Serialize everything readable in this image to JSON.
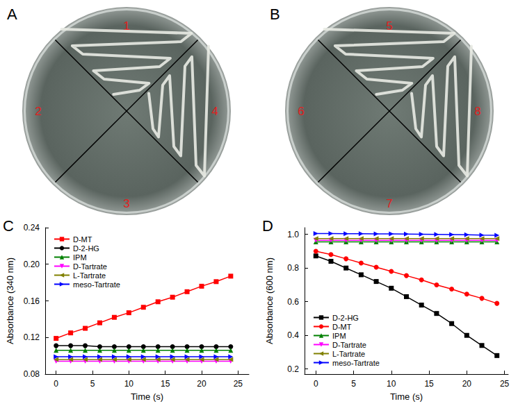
{
  "plates": [
    {
      "panel": "A",
      "sectors": [
        "1",
        "2",
        "3",
        "4"
      ],
      "growth": [
        true,
        false,
        false,
        true
      ]
    },
    {
      "panel": "B",
      "sectors": [
        "5",
        "6",
        "7",
        "8"
      ],
      "growth": [
        true,
        false,
        false,
        true
      ]
    }
  ],
  "chart_data": [
    {
      "type": "line",
      "panel": "C",
      "x_label": "Time (s)",
      "y_label": "Absorbance (340 nm)",
      "x": [
        0,
        2,
        4,
        6,
        8,
        10,
        12,
        14,
        16,
        18,
        20,
        22,
        24
      ],
      "xlim": [
        -1.5,
        26.5
      ],
      "xticks": [
        0,
        5,
        10,
        15,
        20,
        25
      ],
      "ylim": [
        0.08,
        0.24
      ],
      "yticks": [
        0.08,
        0.12,
        0.16,
        {
          "value": 0.2,
          "label": "0.20"
        },
        0.24
      ],
      "grid": false,
      "legend": "upper left",
      "series": [
        {
          "name": "D-MT",
          "color": "#ff0000",
          "marker": "square",
          "values": [
            0.119,
            0.125,
            0.13,
            0.136,
            0.142,
            0.147,
            0.153,
            0.159,
            0.164,
            0.17,
            0.176,
            0.181,
            0.187
          ]
        },
        {
          "name": "D-2-HG",
          "color": "#000000",
          "marker": "circle",
          "values": [
            0.111,
            0.111,
            0.111,
            0.11,
            0.11,
            0.11,
            0.11,
            0.11,
            0.11,
            0.11,
            0.11,
            0.11,
            0.11
          ]
        },
        {
          "name": "IPM",
          "color": "#008000",
          "marker": "triangle_up",
          "values": [
            0.106,
            0.106,
            0.106,
            0.106,
            0.106,
            0.106,
            0.106,
            0.106,
            0.106,
            0.106,
            0.106,
            0.106,
            0.106
          ]
        },
        {
          "name": "D-Tartrate",
          "color": "#ff00ff",
          "marker": "triangle_down",
          "values": [
            0.094,
            0.094,
            0.094,
            0.094,
            0.094,
            0.094,
            0.094,
            0.094,
            0.094,
            0.094,
            0.094,
            0.094,
            0.094
          ]
        },
        {
          "name": "L-Tartrate",
          "color": "#808000",
          "marker": "triangle_left",
          "values": [
            0.096,
            0.096,
            0.096,
            0.096,
            0.096,
            0.096,
            0.096,
            0.096,
            0.096,
            0.096,
            0.096,
            0.096,
            0.096
          ]
        },
        {
          "name": "meso-Tartrate",
          "color": "#0000ff",
          "marker": "triangle_right",
          "values": [
            0.099,
            0.099,
            0.099,
            0.099,
            0.099,
            0.099,
            0.099,
            0.099,
            0.099,
            0.099,
            0.099,
            0.099,
            0.099
          ]
        }
      ]
    },
    {
      "type": "line",
      "panel": "D",
      "x_label": "Time (s)",
      "y_label": "Absorbance (600 nm)",
      "x": [
        0,
        2,
        4,
        6,
        8,
        10,
        12,
        14,
        16,
        18,
        20,
        22,
        24
      ],
      "xlim": [
        -1.5,
        25.5
      ],
      "xticks": [
        0,
        5,
        10,
        15,
        20,
        25
      ],
      "ylim": [
        0.17,
        1.04
      ],
      "yticks": [
        0.2,
        0.4,
        0.6,
        0.8,
        {
          "value": 1,
          "label": "1.0"
        }
      ],
      "grid": false,
      "legend": "lower left",
      "series": [
        {
          "name": "D-2-HG",
          "color": "#000000",
          "marker": "square",
          "values": [
            0.872,
            0.84,
            0.8,
            0.76,
            0.72,
            0.68,
            0.63,
            0.58,
            0.53,
            0.47,
            0.4,
            0.34,
            0.28
          ]
        },
        {
          "name": "D-MT",
          "color": "#ff0000",
          "marker": "circle",
          "values": [
            0.9,
            0.88,
            0.855,
            0.83,
            0.805,
            0.78,
            0.755,
            0.73,
            0.7,
            0.675,
            0.645,
            0.62,
            0.59
          ]
        },
        {
          "name": "IPM",
          "color": "#008000",
          "marker": "triangle_up",
          "values": [
            0.955,
            0.955,
            0.955,
            0.955,
            0.955,
            0.955,
            0.955,
            0.955,
            0.955,
            0.955,
            0.955,
            0.955,
            0.955
          ]
        },
        {
          "name": "D-Tartrate",
          "color": "#ff00ff",
          "marker": "triangle_down",
          "values": [
            0.965,
            0.965,
            0.965,
            0.965,
            0.965,
            0.965,
            0.965,
            0.965,
            0.965,
            0.965,
            0.965,
            0.965,
            0.965
          ]
        },
        {
          "name": "L-Tartrate",
          "color": "#808000",
          "marker": "triangle_left",
          "values": [
            0.975,
            0.975,
            0.975,
            0.975,
            0.975,
            0.975,
            0.975,
            0.975,
            0.975,
            0.975,
            0.975,
            0.975,
            0.975
          ]
        },
        {
          "name": "meso-Tartrate",
          "color": "#0000ff",
          "marker": "triangle_right",
          "values": [
            1.005,
            1.005,
            1.004,
            1.004,
            1.003,
            1.003,
            1.002,
            1.001,
            1.0,
            0.999,
            0.998,
            0.996,
            0.995
          ]
        }
      ]
    }
  ]
}
